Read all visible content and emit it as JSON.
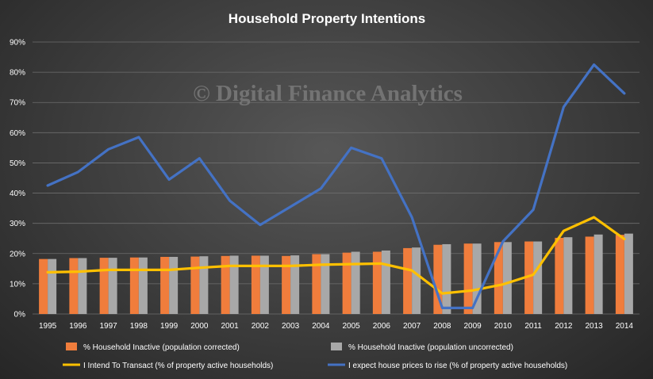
{
  "chart_data": {
    "type": "bar",
    "title": "Household  Property  Intentions",
    "watermark": "© Digital Finance Analytics",
    "categories": [
      "1995",
      "1996",
      "1997",
      "1998",
      "1999",
      "2000",
      "2001",
      "2002",
      "2003",
      "2004",
      "2005",
      "2006",
      "2007",
      "2008",
      "2009",
      "2010",
      "2011",
      "2012",
      "2013",
      "2014"
    ],
    "ylim": [
      0,
      90
    ],
    "ytick_labels": [
      "0%",
      "10%",
      "20%",
      "30%",
      "40%",
      "50%",
      "60%",
      "70%",
      "80%",
      "90%"
    ],
    "gridlines": true,
    "legend_position": "bottom",
    "series": [
      {
        "name": "% Household Inactive (population corrected)",
        "kind": "bar",
        "color": "#f07d3c",
        "values": [
          18.2,
          18.5,
          18.6,
          18.7,
          18.9,
          19.0,
          19.2,
          19.3,
          19.2,
          19.8,
          20.3,
          20.6,
          21.8,
          22.9,
          23.3,
          23.8,
          24.0,
          25.2,
          25.6,
          26.2
        ]
      },
      {
        "name": "% Household Inactive (population uncorrected)",
        "kind": "bar",
        "color": "#a8a8a8",
        "values": [
          18.2,
          18.5,
          18.6,
          18.7,
          18.9,
          19.1,
          19.3,
          19.3,
          19.4,
          19.8,
          20.6,
          21.0,
          22.0,
          23.1,
          23.3,
          23.8,
          24.0,
          25.4,
          26.3,
          26.6
        ]
      },
      {
        "name": "I Intend To Transact (% of property active households)",
        "kind": "line",
        "color": "#ffc000",
        "values": [
          13.8,
          14.0,
          14.6,
          14.6,
          14.6,
          15.3,
          15.9,
          15.9,
          15.9,
          16.3,
          16.5,
          16.7,
          14.4,
          6.8,
          7.8,
          9.8,
          13.0,
          27.5,
          32.0,
          24.8
        ]
      },
      {
        "name": "I expect house prices to rise (% of property active households)",
        "kind": "line",
        "color": "#4472c4",
        "values": [
          42.5,
          47.0,
          54.5,
          58.5,
          44.5,
          51.5,
          37.5,
          29.5,
          35.5,
          41.5,
          55.0,
          51.5,
          32.0,
          2.0,
          2.0,
          24.0,
          34.5,
          68.5,
          82.5,
          73.0
        ]
      }
    ]
  }
}
